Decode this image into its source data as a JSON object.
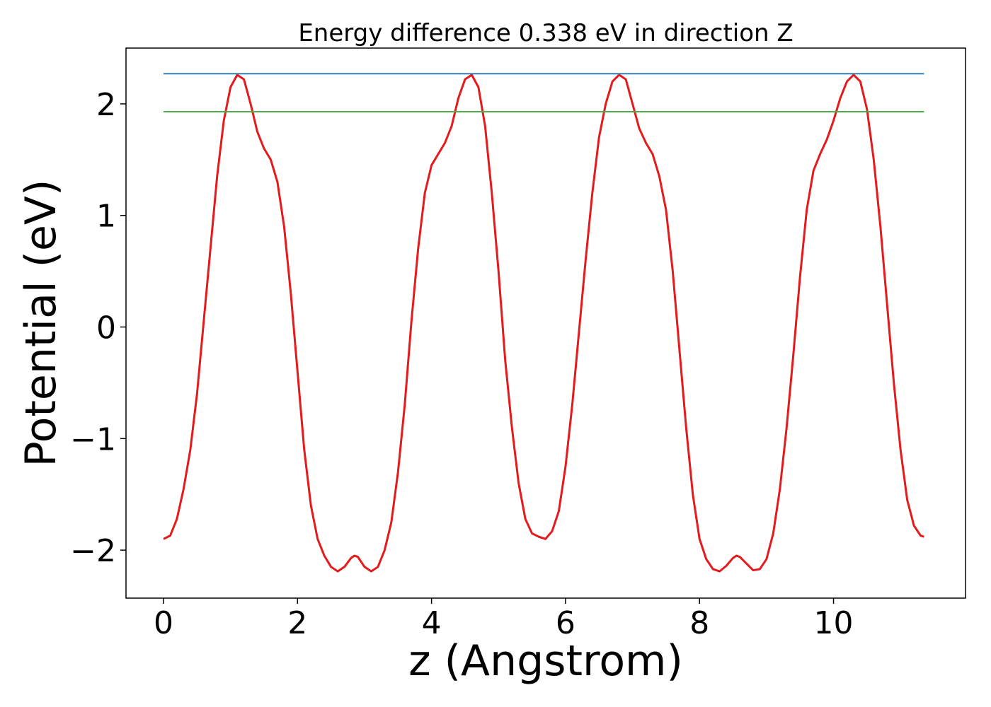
{
  "chart_data": {
    "type": "line",
    "title": "Energy difference 0.338 eV in direction Z",
    "xlabel": "z (Angstrom)",
    "ylabel": "Potential (eV)",
    "xlim": [
      -0.56,
      11.97
    ],
    "ylim": [
      -2.43,
      2.5
    ],
    "x_ticks": [
      0,
      2,
      4,
      6,
      8,
      10
    ],
    "x_tick_labels": [
      "0",
      "2",
      "4",
      "6",
      "8",
      "10"
    ],
    "y_ticks": [
      -2,
      -1,
      0,
      1,
      2
    ],
    "y_tick_labels": [
      "−2",
      "−1",
      "0",
      "1",
      "2"
    ],
    "grid": false,
    "legend": "none",
    "series": [
      {
        "kind": "curve",
        "color": "#e41a1c",
        "points": [
          [
            0.0,
            -1.9
          ],
          [
            0.1,
            -1.87
          ],
          [
            0.2,
            -1.72
          ],
          [
            0.3,
            -1.45
          ],
          [
            0.4,
            -1.1
          ],
          [
            0.5,
            -0.6
          ],
          [
            0.6,
            0.05
          ],
          [
            0.7,
            0.7
          ],
          [
            0.8,
            1.35
          ],
          [
            0.9,
            1.85
          ],
          [
            1.0,
            2.15
          ],
          [
            1.1,
            2.26
          ],
          [
            1.2,
            2.22
          ],
          [
            1.3,
            2.0
          ],
          [
            1.4,
            1.75
          ],
          [
            1.5,
            1.6
          ],
          [
            1.6,
            1.5
          ],
          [
            1.7,
            1.3
          ],
          [
            1.8,
            0.9
          ],
          [
            1.9,
            0.3
          ],
          [
            2.0,
            -0.4
          ],
          [
            2.1,
            -1.1
          ],
          [
            2.2,
            -1.6
          ],
          [
            2.3,
            -1.9
          ],
          [
            2.4,
            -2.05
          ],
          [
            2.5,
            -2.15
          ],
          [
            2.6,
            -2.19
          ],
          [
            2.7,
            -2.15
          ],
          [
            2.8,
            -2.07
          ],
          [
            2.85,
            -2.05
          ],
          [
            2.9,
            -2.06
          ],
          [
            3.0,
            -2.15
          ],
          [
            3.1,
            -2.19
          ],
          [
            3.2,
            -2.15
          ],
          [
            3.3,
            -2.0
          ],
          [
            3.4,
            -1.75
          ],
          [
            3.5,
            -1.3
          ],
          [
            3.6,
            -0.7
          ],
          [
            3.7,
            0.05
          ],
          [
            3.8,
            0.7
          ],
          [
            3.9,
            1.2
          ],
          [
            4.0,
            1.45
          ],
          [
            4.1,
            1.55
          ],
          [
            4.2,
            1.65
          ],
          [
            4.3,
            1.8
          ],
          [
            4.4,
            2.05
          ],
          [
            4.5,
            2.22
          ],
          [
            4.6,
            2.26
          ],
          [
            4.7,
            2.15
          ],
          [
            4.8,
            1.8
          ],
          [
            4.9,
            1.2
          ],
          [
            5.0,
            0.5
          ],
          [
            5.1,
            -0.3
          ],
          [
            5.2,
            -0.9
          ],
          [
            5.3,
            -1.4
          ],
          [
            5.4,
            -1.72
          ],
          [
            5.5,
            -1.85
          ],
          [
            5.6,
            -1.88
          ],
          [
            5.7,
            -1.9
          ],
          [
            5.8,
            -1.83
          ],
          [
            5.9,
            -1.65
          ],
          [
            6.0,
            -1.25
          ],
          [
            6.1,
            -0.7
          ],
          [
            6.2,
            -0.05
          ],
          [
            6.3,
            0.6
          ],
          [
            6.4,
            1.2
          ],
          [
            6.5,
            1.7
          ],
          [
            6.6,
            2.0
          ],
          [
            6.7,
            2.2
          ],
          [
            6.8,
            2.26
          ],
          [
            6.9,
            2.22
          ],
          [
            7.0,
            2.0
          ],
          [
            7.1,
            1.78
          ],
          [
            7.2,
            1.65
          ],
          [
            7.3,
            1.55
          ],
          [
            7.4,
            1.35
          ],
          [
            7.5,
            1.05
          ],
          [
            7.6,
            0.5
          ],
          [
            7.7,
            -0.2
          ],
          [
            7.8,
            -0.9
          ],
          [
            7.9,
            -1.5
          ],
          [
            8.0,
            -1.9
          ],
          [
            8.1,
            -2.08
          ],
          [
            8.2,
            -2.17
          ],
          [
            8.3,
            -2.19
          ],
          [
            8.4,
            -2.14
          ],
          [
            8.5,
            -2.07
          ],
          [
            8.55,
            -2.05
          ],
          [
            8.6,
            -2.06
          ],
          [
            8.7,
            -2.12
          ],
          [
            8.8,
            -2.18
          ],
          [
            8.9,
            -2.17
          ],
          [
            9.0,
            -2.08
          ],
          [
            9.1,
            -1.85
          ],
          [
            9.2,
            -1.45
          ],
          [
            9.3,
            -0.9
          ],
          [
            9.4,
            -0.25
          ],
          [
            9.5,
            0.45
          ],
          [
            9.6,
            1.05
          ],
          [
            9.7,
            1.4
          ],
          [
            9.8,
            1.55
          ],
          [
            9.9,
            1.68
          ],
          [
            10.0,
            1.85
          ],
          [
            10.1,
            2.05
          ],
          [
            10.2,
            2.2
          ],
          [
            10.3,
            2.26
          ],
          [
            10.4,
            2.2
          ],
          [
            10.5,
            1.95
          ],
          [
            10.6,
            1.5
          ],
          [
            10.7,
            0.9
          ],
          [
            10.8,
            0.2
          ],
          [
            10.9,
            -0.5
          ],
          [
            11.0,
            -1.1
          ],
          [
            11.1,
            -1.55
          ],
          [
            11.2,
            -1.78
          ],
          [
            11.3,
            -1.87
          ],
          [
            11.35,
            -1.88
          ]
        ]
      },
      {
        "kind": "hline",
        "color": "#377eb8",
        "y": 2.27,
        "x_range": [
          0.0,
          11.35
        ]
      },
      {
        "kind": "hline",
        "color": "#4daf4a",
        "y": 1.93,
        "x_range": [
          0.0,
          11.35
        ]
      }
    ]
  }
}
